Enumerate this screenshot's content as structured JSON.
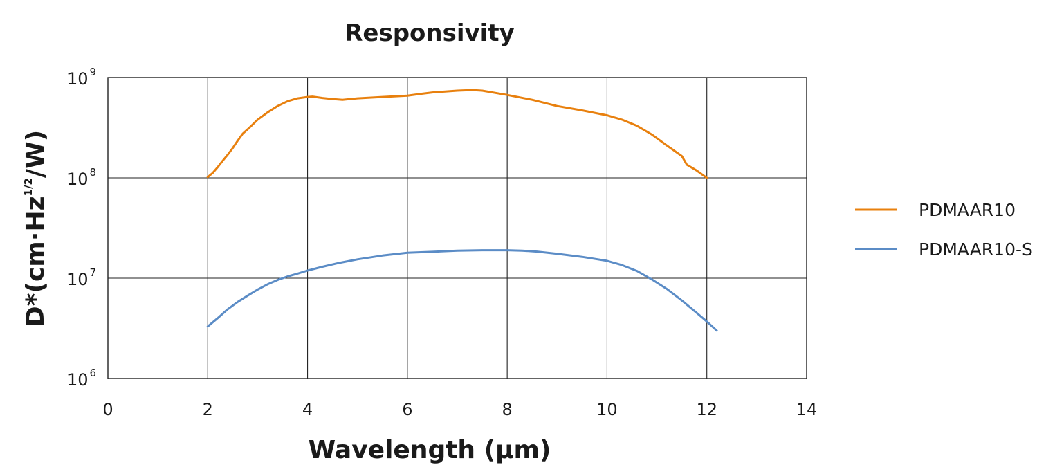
{
  "chart_data": {
    "type": "line",
    "title": "Responsivity",
    "xlabel": "Wavelength (μm)",
    "ylabel": {
      "prefix": "D*(cm·Hz",
      "superscript": "1/2",
      "suffix": "/W)"
    },
    "xlim": [
      0,
      14
    ],
    "ylim": [
      1000000,
      1000000000
    ],
    "yscale": "log",
    "grid": true,
    "x_ticks": [
      "0",
      "2",
      "4",
      "6",
      "8",
      "10",
      "12",
      "14"
    ],
    "y_ticks": [
      {
        "base": "10",
        "exp": "6"
      },
      {
        "base": "10",
        "exp": "7"
      },
      {
        "base": "10",
        "exp": "8"
      },
      {
        "base": "10",
        "exp": "9"
      }
    ],
    "legend_position": "right",
    "series": [
      {
        "name": "PDMAAR10",
        "color": "#E8800E",
        "x": [
          2.0,
          2.1,
          2.2,
          2.3,
          2.4,
          2.5,
          2.6,
          2.7,
          2.8,
          2.9,
          3.0,
          3.2,
          3.4,
          3.6,
          3.8,
          4.0,
          4.1,
          4.3,
          4.5,
          4.7,
          5.0,
          5.5,
          6.0,
          6.3,
          6.5,
          7.0,
          7.3,
          7.5,
          8.0,
          8.5,
          9.0,
          9.5,
          10.0,
          10.3,
          10.6,
          10.9,
          11.2,
          11.5,
          11.6,
          11.8,
          12.0
        ],
        "y": [
          102000000,
          112000000,
          128000000,
          148000000,
          170000000,
          198000000,
          235000000,
          275000000,
          305000000,
          340000000,
          380000000,
          450000000,
          520000000,
          580000000,
          620000000,
          640000000,
          645000000,
          625000000,
          610000000,
          600000000,
          620000000,
          640000000,
          660000000,
          690000000,
          710000000,
          740000000,
          750000000,
          740000000,
          670000000,
          600000000,
          520000000,
          470000000,
          420000000,
          380000000,
          330000000,
          270000000,
          210000000,
          165000000,
          135000000,
          118000000,
          100000000
        ]
      },
      {
        "name": "PDMAAR10-S",
        "color": "#5B8CC6",
        "x": [
          2.0,
          2.2,
          2.4,
          2.6,
          2.8,
          3.0,
          3.2,
          3.4,
          3.6,
          3.8,
          4.0,
          4.3,
          4.6,
          5.0,
          5.5,
          6.0,
          6.5,
          7.0,
          7.5,
          8.0,
          8.3,
          8.6,
          9.0,
          9.5,
          10.0,
          10.3,
          10.6,
          10.9,
          11.2,
          11.5,
          11.8,
          12.0,
          12.2
        ],
        "y": [
          3300000,
          4000000,
          4900000,
          5800000,
          6700000,
          7700000,
          8700000,
          9600000,
          10400000,
          11100000,
          11900000,
          13000000,
          14100000,
          15400000,
          16800000,
          17900000,
          18300000,
          18800000,
          19000000,
          19000000,
          18800000,
          18400000,
          17500000,
          16300000,
          14900000,
          13500000,
          11800000,
          9700000,
          7800000,
          6000000,
          4500000,
          3700000,
          3000000
        ]
      }
    ]
  }
}
